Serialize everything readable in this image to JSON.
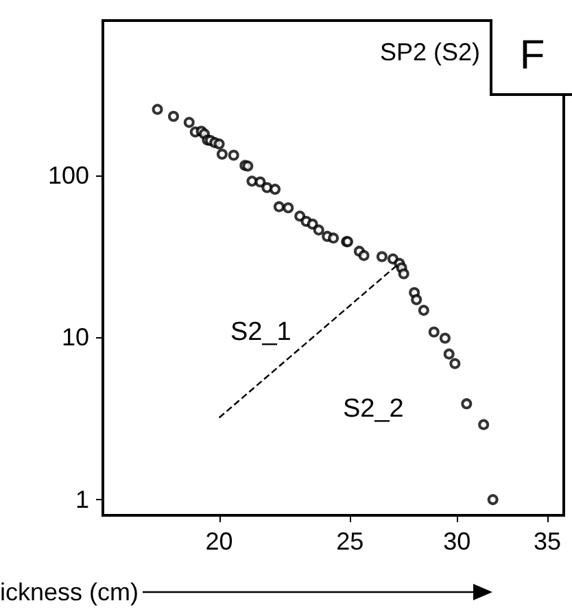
{
  "chart_data": {
    "type": "scatter",
    "title": "SP2 (S2)",
    "xlabel": "ickness (cm)",
    "log": "xy",
    "xlim": [
      16.4,
      36
    ],
    "xticks": [
      20,
      25,
      30,
      35
    ],
    "ylim": [
      0.8,
      900
    ],
    "yticks": [
      1,
      10,
      100
    ],
    "grid": false,
    "annotations": [
      "F",
      "S2_1",
      "S2_2"
    ],
    "series": [
      {
        "color": "#000000",
        "marker": "circle",
        "x": [
          18.0,
          18.5,
          19.0,
          19.2,
          19.4,
          19.5,
          19.6,
          19.7,
          19.85,
          20.0,
          20.1,
          20.5,
          20.9,
          21.0,
          21.15,
          21.45,
          21.7,
          22.0,
          22.15,
          22.5,
          22.95,
          23.2,
          23.45,
          23.7,
          24.05,
          24.3,
          24.85,
          24.9,
          25.4,
          25.6,
          26.4,
          26.9,
          27.2,
          27.3,
          27.4,
          27.9,
          28.0,
          28.35,
          28.85,
          29.4,
          29.6,
          29.9,
          30.5,
          31.4,
          31.9
        ],
        "values": [
          255,
          231,
          212,
          185,
          187,
          180,
          165,
          164,
          159,
          156,
          135,
          133,
          115,
          114,
          92,
          91,
          84,
          82,
          64,
          63,
          56,
          52,
          50,
          46,
          42,
          41,
          39,
          39,
          34,
          32,
          31.5,
          30.5,
          28.6,
          26.9,
          24.7,
          18.9,
          17.1,
          14.7,
          10.8,
          9.9,
          7.9,
          6.9,
          3.9,
          2.9,
          1.0
        ]
      },
      {
        "type": "line",
        "color": "#000000",
        "line_style": "dashed",
        "marker": "none",
        "x": [
          20,
          27.1
        ],
        "values": [
          3.2,
          28
        ]
      }
    ]
  }
}
